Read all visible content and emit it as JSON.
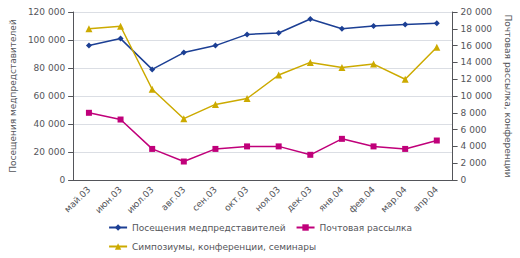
{
  "chart_data": {
    "type": "line",
    "categories": [
      "май.03",
      "июн.03",
      "июл.03",
      "авг.03",
      "сен.03",
      "окт.03",
      "ноя.03",
      "дек.03",
      "янв.04",
      "фев.04",
      "мар.04",
      "апр.04"
    ],
    "series": [
      {
        "name": "Посещения медпредставителей",
        "color": "#1c3f94",
        "marker": "diamond",
        "values": [
          96000,
          101000,
          79000,
          91000,
          96000,
          104000,
          105000,
          115000,
          108000,
          110000,
          111000,
          112000
        ]
      },
      {
        "name": "Почтовая рассылка",
        "color": "#c0007a",
        "marker": "square",
        "axis": "y2",
        "values": [
          8000,
          7200,
          3700,
          2200,
          3700,
          4000,
          4000,
          3000,
          4900,
          4000,
          3700,
          4700
        ]
      },
      {
        "name": "Симпозиумы, конференции, семинары",
        "color": "#ccaa00",
        "marker": "triangle",
        "axis": "y2",
        "values": [
          18000,
          18300,
          10800,
          7300,
          9000,
          9700,
          12500,
          14000,
          13400,
          13800,
          12000,
          15800
        ]
      }
    ],
    "ylabel": "Посещения медпредставителей",
    "y2label": "Почтовая рассылка, конференции",
    "ylim": [
      0,
      120000
    ],
    "yticks": [
      0,
      {
        "value": 20000,
        "label": "20 000"
      },
      {
        "value": 40000,
        "label": "40 000"
      },
      {
        "value": 60000,
        "label": "60 000"
      },
      {
        "value": 80000,
        "label": "80 000"
      },
      {
        "value": 100000,
        "label": "100 000"
      },
      {
        "value": 120000,
        "label": "120 000"
      }
    ],
    "y2lim": [
      0,
      20000
    ],
    "y2ticks": [
      0,
      {
        "value": 2000,
        "label": "2 000"
      },
      {
        "value": 4000,
        "label": "4 000"
      },
      {
        "value": 6000,
        "label": "6 000"
      },
      {
        "value": 8000,
        "label": "8 000"
      },
      {
        "value": 10000,
        "label": "10 000"
      },
      {
        "value": 12000,
        "label": "12 000"
      },
      {
        "value": 14000,
        "label": "14 000"
      },
      {
        "value": 16000,
        "label": "16 000"
      },
      {
        "value": 18000,
        "label": "18 000"
      },
      {
        "value": 20000,
        "label": "20 000"
      }
    ],
    "grid": true,
    "legend": "bottom"
  }
}
